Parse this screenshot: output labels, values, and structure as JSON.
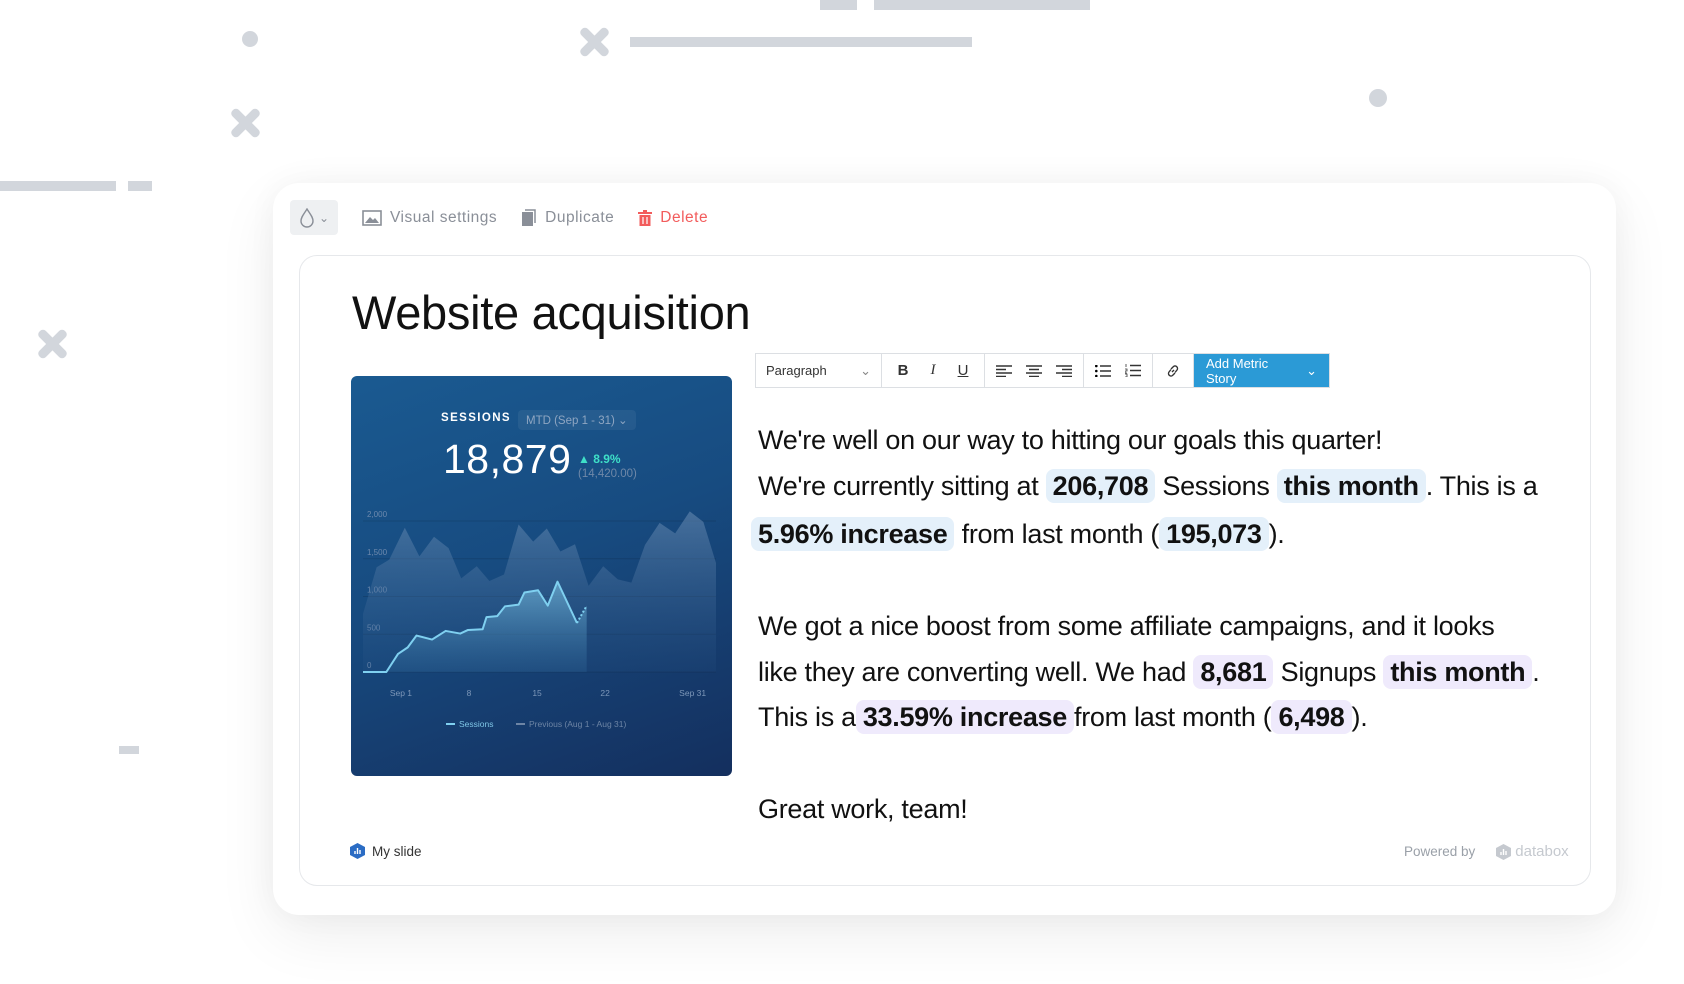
{
  "toolbar_actions": {
    "theme_icon": "droplet-icon",
    "visual_settings": "Visual settings",
    "duplicate": "Duplicate",
    "delete": "Delete"
  },
  "slide": {
    "title": "Website acquisition"
  },
  "editor_toolbar": {
    "block_format": "Paragraph",
    "bold": "B",
    "italic": "I",
    "underline": "U",
    "add_metric_story": "Add Metric Story"
  },
  "body": {
    "p1": {
      "l1": "We're well on our way to hitting our goals this quarter!",
      "l2a": "We're currently sitting at",
      "m1": "206,708",
      "l2b": "Sessions",
      "m2": "this month",
      "l2c": ". This is a",
      "m3": "5.96% increase",
      "l3a": "from last month (",
      "m4": "195,073",
      "l3b": ")."
    },
    "p2": {
      "l1": "We got a nice boost from some affiliate campaigns, and it looks",
      "l2a": "like they are converting well. We had",
      "m1": "8,681",
      "l2b": "Signups",
      "m2": "this month",
      "l2c": ".",
      "l3a": "This is a",
      "m3": "33.59% increase",
      "l3b": "from last month (",
      "m4": "6,498",
      "l3c": ")."
    },
    "p3": "Great work, team!"
  },
  "footer": {
    "slide_name": "My slide",
    "powered_by": "Powered by",
    "brand": "databox"
  },
  "colors": {
    "accent": "#2b9ad6",
    "delete": "#f25c5c",
    "highlight_sessions": "#e4f0fa",
    "highlight_signups": "#efeafc",
    "positive": "#3ee0c8"
  },
  "widget": {
    "metric": "SESSIONS",
    "date_range": "MTD (Sep 1 - 31)",
    "value": "18,879",
    "change": "▲ 8.9%",
    "previous_value": "(14,420.00)"
  },
  "chart_data": {
    "type": "area",
    "ylim": [
      0,
      2000
    ],
    "yticks": [
      "0",
      "500",
      "1,000",
      "1,500",
      "2,000"
    ],
    "ytick_values": [
      0,
      500,
      1000,
      1500,
      2000
    ],
    "xlim": [
      -2.9,
      33.4
    ],
    "xticks": [
      "Sep 1",
      "8",
      "15",
      "22",
      "Sep 31"
    ],
    "xtick_values": [
      1,
      8,
      15,
      22,
      31
    ],
    "grid": true,
    "legend": "bottom",
    "series": [
      {
        "name": "Sessions",
        "style": "line+area",
        "color": "#7fd0f0",
        "x": [
          -2.9,
          -0.5,
          0.7,
          1.7,
          2.6,
          4.2,
          5.6,
          7.1,
          7.9,
          9.4,
          9.8,
          10.9,
          11.7,
          13.1,
          13.7,
          15.1,
          16.1,
          17.1,
          19.1,
          20.1
        ],
        "values": [
          0,
          0,
          239,
          326,
          483,
          430,
          544,
          509,
          557,
          566,
          727,
          740,
          870,
          892,
          1053,
          1083,
          879,
          1197,
          649,
          878
        ]
      },
      {
        "name": "Previous (Aug 1 - Aug 31)",
        "style": "area",
        "color": "#5b7ea8",
        "x": [
          -2.9,
          -1.5,
          -0.2,
          1.4,
          2.9,
          4.4,
          5.9,
          7.2,
          8.8,
          10.1,
          11.6,
          13.1,
          14.6,
          16.0,
          17.4,
          18.9,
          20.3,
          21.8,
          23.3,
          24.7,
          26.1,
          27.6,
          29.2,
          30.7,
          32.1,
          33.4
        ],
        "values": [
          770,
          1388,
          1488,
          1910,
          1531,
          1792,
          1640,
          1240,
          1400,
          1205,
          1292,
          1953,
          1727,
          1901,
          1596,
          1692,
          1140,
          1400,
          1227,
          1183,
          1683,
          1975,
          1836,
          2127,
          1988,
          1444
        ]
      }
    ]
  }
}
